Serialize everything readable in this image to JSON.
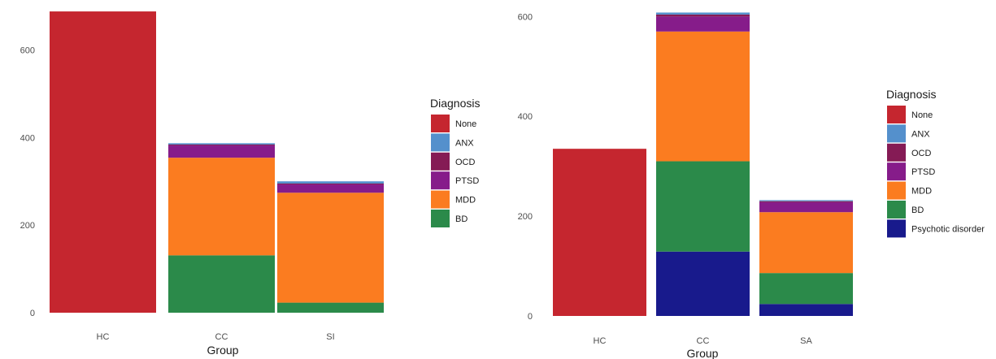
{
  "colors": {
    "None": "#c5262f",
    "ANX": "#5490cc",
    "OCD": "#851b55",
    "PTSD": "#861c8a",
    "MDD": "#fb7c20",
    "BD": "#2b8a4a",
    "Psychotic disorder": "#181a8c"
  },
  "chart_data": [
    {
      "type": "bar",
      "stacked": true,
      "xlabel": "Group",
      "ylabel": "",
      "categories": [
        "HC",
        "CC",
        "SI"
      ],
      "ylim": [
        0,
        690
      ],
      "yticks": [
        0,
        200,
        400,
        600
      ],
      "grid": false,
      "legend_title": "Diagnosis",
      "legend_position": "right",
      "legend": [
        "None",
        "ANX",
        "OCD",
        "PTSD",
        "MDD",
        "BD"
      ],
      "series": [
        {
          "name": "BD",
          "values": [
            0,
            131,
            23
          ]
        },
        {
          "name": "MDD",
          "values": [
            0,
            223,
            251
          ]
        },
        {
          "name": "PTSD",
          "values": [
            0,
            28,
            19
          ]
        },
        {
          "name": "OCD",
          "values": [
            0,
            2,
            2
          ]
        },
        {
          "name": "ANX",
          "values": [
            0,
            3,
            5
          ]
        },
        {
          "name": "None",
          "values": [
            688,
            0,
            0
          ]
        }
      ]
    },
    {
      "type": "bar",
      "stacked": true,
      "xlabel": "Group",
      "ylabel": "",
      "categories": [
        "HC",
        "CC",
        "SA"
      ],
      "ylim": [
        0,
        612
      ],
      "yticks": [
        0,
        200,
        400,
        600
      ],
      "grid": false,
      "legend_title": "Diagnosis",
      "legend_position": "right",
      "legend": [
        "None",
        "ANX",
        "OCD",
        "PTSD",
        "MDD",
        "BD",
        "Psychotic disorder"
      ],
      "series": [
        {
          "name": "Psychotic disorder",
          "values": [
            0,
            129,
            24
          ]
        },
        {
          "name": "BD",
          "values": [
            0,
            181,
            62
          ]
        },
        {
          "name": "MDD",
          "values": [
            0,
            260,
            122
          ]
        },
        {
          "name": "PTSD",
          "values": [
            0,
            30,
            20
          ]
        },
        {
          "name": "OCD",
          "values": [
            0,
            4,
            2
          ]
        },
        {
          "name": "ANX",
          "values": [
            0,
            4,
            2
          ]
        },
        {
          "name": "None",
          "values": [
            335,
            0,
            0
          ]
        }
      ]
    }
  ]
}
